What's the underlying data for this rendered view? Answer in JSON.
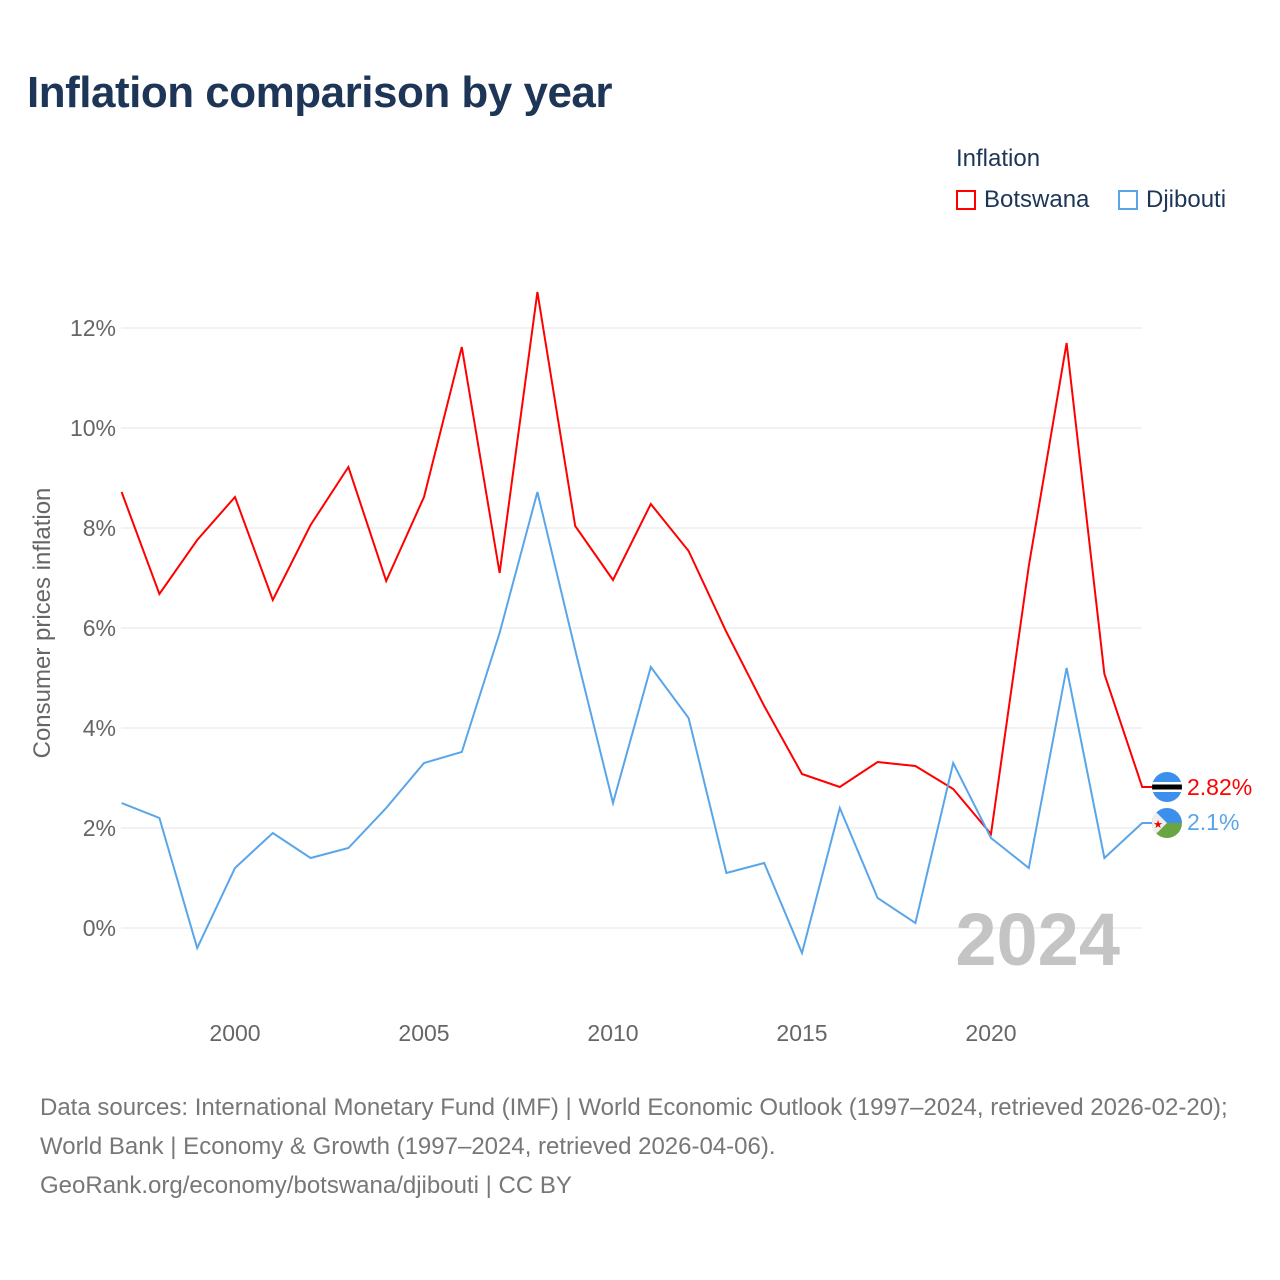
{
  "title": "Inflation comparison by year",
  "legend": {
    "title": "Inflation",
    "items": [
      {
        "name": "Botswana",
        "color": "#ff0000"
      },
      {
        "name": "Djibouti",
        "color": "#5aa5ea"
      }
    ]
  },
  "source": {
    "line1": "Data sources: International Monetary Fund (IMF) | World Economic Outlook (1997–2024, retrieved 2026-02-20); World Bank | Economy & Growth (1997–2024, retrieved 2026-04-06).",
    "line2": "GeoRank.org/economy/botswana/djibouti | CC BY"
  },
  "chart_data": {
    "type": "line",
    "title": "Inflation comparison by year",
    "ylabel": "Consumer prices inflation",
    "xlabel": "",
    "year_watermark": "2024",
    "xlim": [
      1997,
      2024
    ],
    "ylim": [
      -1.5,
      13
    ],
    "x_ticks": [
      2000,
      2005,
      2010,
      2015,
      2020
    ],
    "y_ticks": [
      0,
      2,
      4,
      6,
      8,
      10,
      12
    ],
    "y_tick_labels": [
      "0%",
      "2%",
      "4%",
      "6%",
      "8%",
      "10%",
      "12%"
    ],
    "grid": true,
    "legend_position": "top-right",
    "x": [
      1997,
      1998,
      1999,
      2000,
      2001,
      2002,
      2003,
      2004,
      2005,
      2006,
      2007,
      2008,
      2009,
      2010,
      2011,
      2012,
      2013,
      2014,
      2015,
      2016,
      2017,
      2018,
      2019,
      2020,
      2021,
      2022,
      2023,
      2024
    ],
    "series": [
      {
        "name": "Botswana",
        "color": "#ff0000",
        "end_label": "2.82%",
        "values": [
          8.72,
          6.68,
          7.76,
          8.62,
          6.56,
          8.06,
          9.22,
          6.94,
          8.62,
          11.62,
          7.1,
          12.72,
          8.04,
          6.96,
          8.48,
          7.54,
          5.92,
          4.44,
          3.08,
          2.82,
          3.32,
          3.24,
          2.78,
          1.88,
          7.24,
          11.7,
          5.08,
          2.82
        ]
      },
      {
        "name": "Djibouti",
        "color": "#5aa5ea",
        "end_label": "2.1%",
        "values": [
          2.5,
          2.2,
          -0.4,
          1.2,
          1.9,
          1.4,
          1.6,
          2.4,
          3.3,
          3.52,
          5.9,
          8.72,
          5.56,
          2.5,
          5.22,
          4.2,
          1.1,
          1.3,
          -0.5,
          2.4,
          0.6,
          0.1,
          3.3,
          1.8,
          1.2,
          5.2,
          1.4,
          2.1
        ]
      }
    ]
  }
}
